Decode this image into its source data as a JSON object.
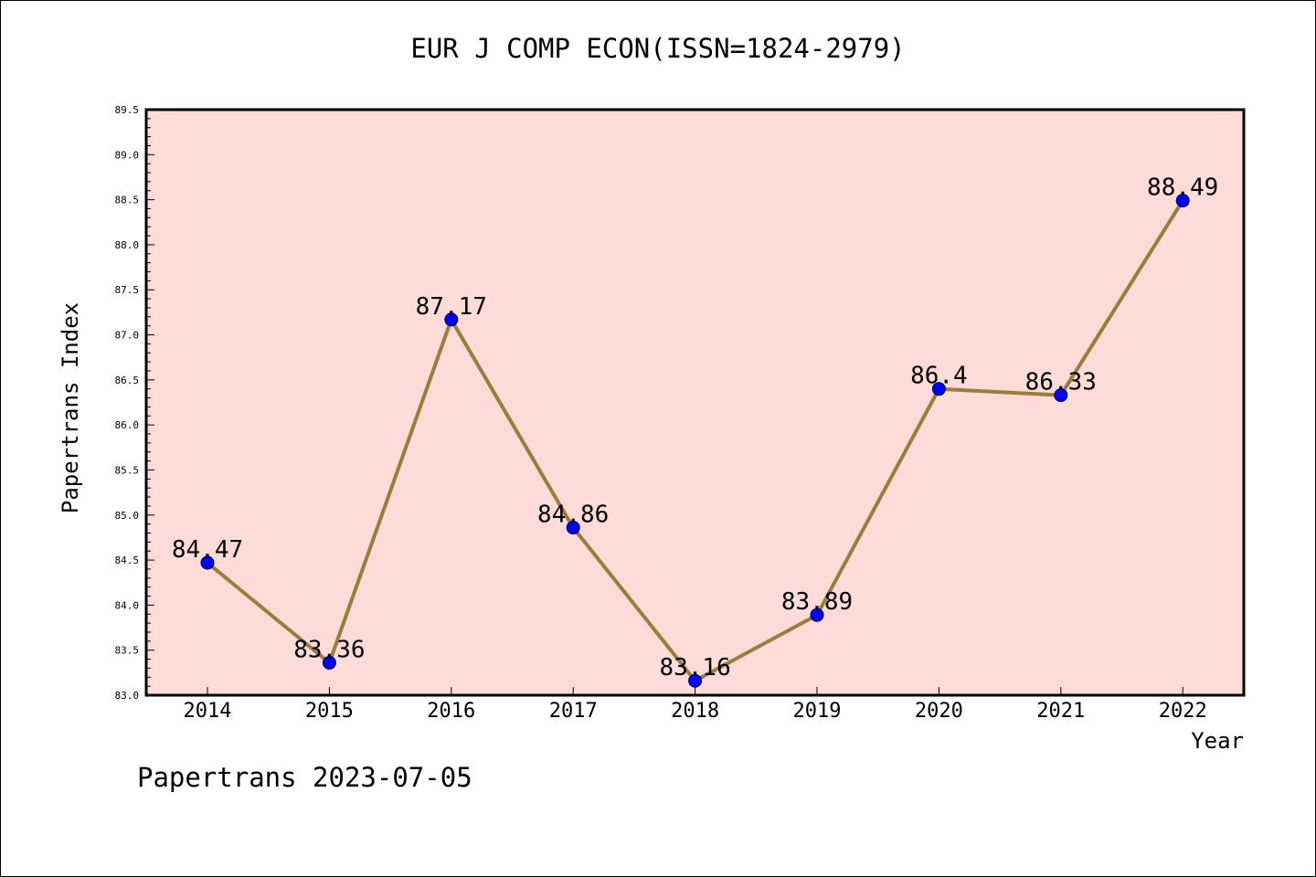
{
  "chart_data": {
    "type": "line",
    "title": "EUR J COMP ECON(ISSN=1824-2979)",
    "xlabel": "Year",
    "ylabel": "Papertrans Index",
    "footer": "Papertrans 2023-07-05",
    "categories": [
      "2014",
      "2015",
      "2016",
      "2017",
      "2018",
      "2019",
      "2020",
      "2021",
      "2022"
    ],
    "series": [
      {
        "values": [
          84.47,
          83.36,
          87.17,
          84.86,
          83.16,
          83.89,
          86.4,
          86.33,
          88.49
        ],
        "labels": [
          "84.47",
          "83.36",
          "87.17",
          "84.86",
          "83.16",
          "83.89",
          "86.4",
          "86.33",
          "88.49"
        ]
      }
    ],
    "ylim": [
      83.0,
      89.5
    ],
    "yticks": [
      "83.0",
      "83.5",
      "84.0",
      "84.5",
      "85.0",
      "85.5",
      "86.0",
      "86.5",
      "87.0",
      "87.5",
      "88.0",
      "88.5",
      "89.0",
      "89.5"
    ],
    "grid": false,
    "legend": "none",
    "colors": {
      "plot_background": "#fddbd8",
      "line": "#9b7d3a",
      "marker": "#0000ff",
      "axis": "#000000"
    }
  }
}
